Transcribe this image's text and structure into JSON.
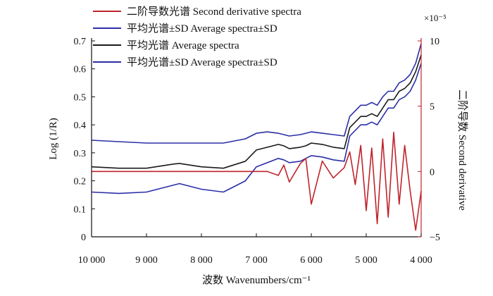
{
  "chart_data": {
    "type": "line",
    "x": [
      10000,
      9500,
      9000,
      8500,
      8400,
      8000,
      7600,
      7200,
      7000,
      6800,
      6600,
      6500,
      6400,
      6200,
      6100,
      6000,
      5800,
      5600,
      5400,
      5300,
      5200,
      5100,
      5000,
      4900,
      4800,
      4700,
      4600,
      4500,
      4400,
      4300,
      4200,
      4100,
      4000
    ],
    "series": [
      {
        "name": "平均光谱±SD  Average spectra±SD",
        "axis": "left",
        "color": "#2b2fa6",
        "values": [
          0.345,
          0.34,
          0.335,
          0.335,
          0.335,
          0.335,
          0.335,
          0.35,
          0.37,
          0.375,
          0.37,
          0.365,
          0.36,
          0.365,
          0.37,
          0.375,
          0.37,
          0.365,
          0.36,
          0.43,
          0.45,
          0.47,
          0.47,
          0.48,
          0.47,
          0.5,
          0.52,
          0.52,
          0.55,
          0.56,
          0.58,
          0.62,
          0.69
        ]
      },
      {
        "name": "平均光谱  Average spectra",
        "axis": "left",
        "color": "#1a1a1a",
        "values": [
          0.25,
          0.245,
          0.245,
          0.26,
          0.262,
          0.25,
          0.245,
          0.27,
          0.31,
          0.32,
          0.33,
          0.325,
          0.315,
          0.32,
          0.325,
          0.335,
          0.33,
          0.32,
          0.315,
          0.39,
          0.41,
          0.43,
          0.43,
          0.44,
          0.43,
          0.46,
          0.49,
          0.49,
          0.52,
          0.53,
          0.55,
          0.59,
          0.65
        ]
      },
      {
        "name": "平均光谱±SD  Average spectra±SD",
        "axis": "left",
        "color": "#2b2fa6",
        "values": [
          0.16,
          0.155,
          0.16,
          0.185,
          0.19,
          0.17,
          0.16,
          0.2,
          0.25,
          0.265,
          0.28,
          0.275,
          0.265,
          0.27,
          0.28,
          0.29,
          0.285,
          0.275,
          0.27,
          0.36,
          0.38,
          0.4,
          0.4,
          0.41,
          0.4,
          0.43,
          0.46,
          0.46,
          0.49,
          0.5,
          0.52,
          0.56,
          0.62
        ]
      },
      {
        "name": "二阶导数光谱  Second derivative spectra",
        "axis": "right",
        "color": "#c0232b",
        "values": [
          0,
          0,
          0,
          0,
          0,
          0,
          0,
          0,
          0,
          0,
          -0.3,
          0.5,
          -0.8,
          0.6,
          1.0,
          -2.5,
          0.8,
          -0.5,
          0.3,
          1.5,
          -1.0,
          2.0,
          -3.0,
          1.8,
          -4.0,
          2.5,
          -3.5,
          3.0,
          -2.5,
          2.0,
          -1.5,
          -4.5,
          -1.5
        ]
      }
    ],
    "left_axis": {
      "label": "Log (1/R)",
      "ylim": [
        0,
        0.7
      ],
      "ticks": [
        "0",
        "0.1",
        "0.2",
        "0.3",
        "0.4",
        "0.5",
        "0.6",
        "0.7"
      ]
    },
    "right_axis": {
      "label": "二阶导数  Second derivative",
      "unit": "×10⁻⁵",
      "ylim": [
        -5,
        10
      ],
      "ticks": [
        "−5",
        "0",
        "5",
        "10"
      ]
    },
    "x_axis": {
      "label": "波数  Wavenumbers/cm⁻¹",
      "xlim": [
        10000,
        4000
      ],
      "reversed": true,
      "ticks": [
        "10 000",
        "9 000",
        "8 000",
        "7 000",
        "6 000",
        "5 000",
        "4 000"
      ]
    },
    "legend": {
      "placement": "top-left",
      "entries": [
        {
          "label": "二阶导数光谱  Second derivative spectra",
          "color": "#c0232b"
        },
        {
          "label": "平均光谱±SD  Average spectra±SD",
          "color": "#2b2fa6"
        },
        {
          "label": "平均光谱  Average spectra",
          "color": "#1a1a1a"
        },
        {
          "label": "平均光谱±SD  Average spectra±SD",
          "color": "#2b2fa6"
        }
      ]
    },
    "grid": false
  }
}
